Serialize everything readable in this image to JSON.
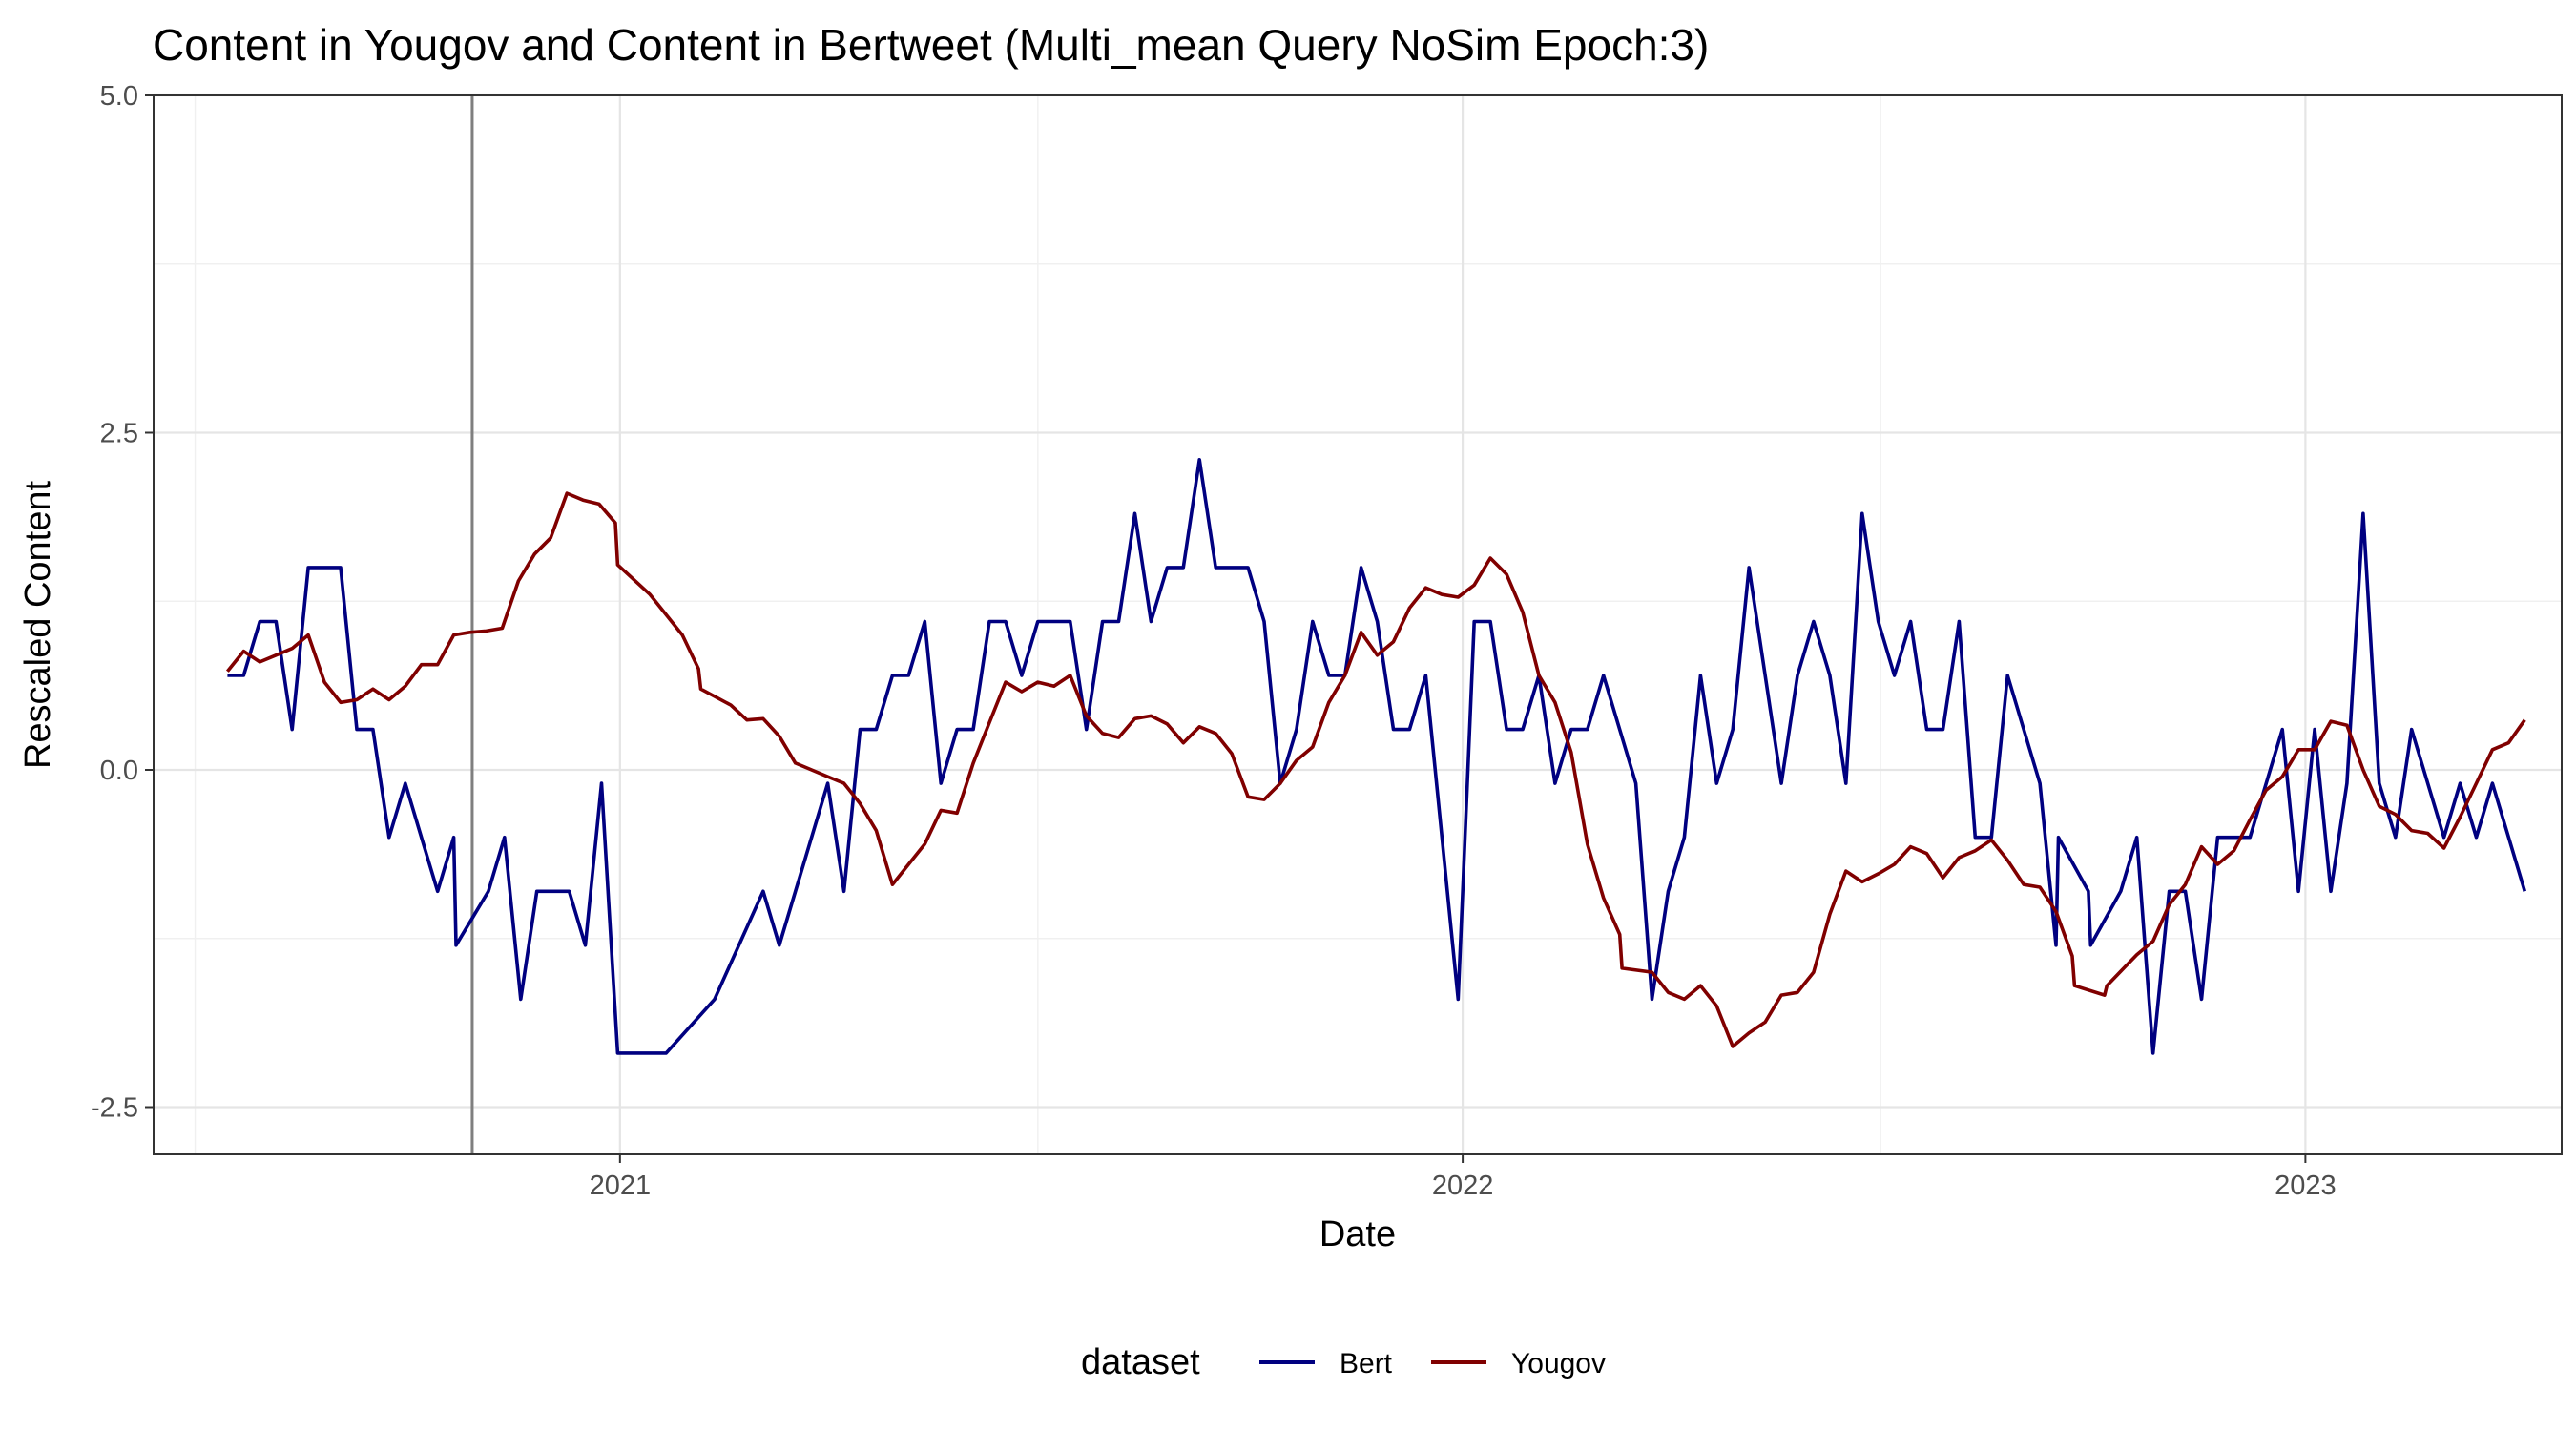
{
  "chart_data": {
    "type": "line",
    "title": "Content in Yougov and Content in Bertweet (Multi_mean Query NoSim Epoch:3)",
    "xlabel": "Date",
    "ylabel": "Rescaled  Content",
    "xlim": [
      "2020-06-13",
      "2023-04-22"
    ],
    "ylim": [
      -2.85,
      5.0
    ],
    "x_ticks": [
      {
        "value": "2021-01-01",
        "label": "2021"
      },
      {
        "value": "2022-01-01",
        "label": "2022"
      },
      {
        "value": "2023-01-01",
        "label": "2023"
      }
    ],
    "y_ticks": [
      {
        "value": -2.5,
        "label": "-2.5"
      },
      {
        "value": 0,
        "label": "0.0"
      },
      {
        "value": 2.5,
        "label": "2.5"
      },
      {
        "value": 5,
        "label": "5.0"
      }
    ],
    "grid": true,
    "vline": "2020-10-29",
    "legend": {
      "title": "dataset",
      "position": "bottom"
    },
    "series": [
      {
        "name": "Bert",
        "color": "#000080",
        "points": [
          [
            "2020-07-15",
            0.7
          ],
          [
            "2020-07-22",
            0.7
          ],
          [
            "2020-07-29",
            1.1
          ],
          [
            "2020-08-05",
            1.1
          ],
          [
            "2020-08-12",
            0.3
          ],
          [
            "2020-08-19",
            1.5
          ],
          [
            "2020-08-26",
            1.5
          ],
          [
            "2020-09-02",
            1.5
          ],
          [
            "2020-09-09",
            0.3
          ],
          [
            "2020-09-16",
            0.3
          ],
          [
            "2020-09-23",
            -0.5
          ],
          [
            "2020-09-30",
            -0.1
          ],
          [
            "2020-10-07",
            -0.5
          ],
          [
            "2020-10-14",
            -0.9
          ],
          [
            "2020-10-21",
            -0.5
          ],
          [
            "2020-10-22",
            -1.3
          ],
          [
            "2020-11-05",
            -0.9
          ],
          [
            "2020-11-12",
            -0.5
          ],
          [
            "2020-11-19",
            -1.7
          ],
          [
            "2020-11-26",
            -0.9
          ],
          [
            "2020-12-03",
            -0.9
          ],
          [
            "2020-12-10",
            -0.9
          ],
          [
            "2020-12-17",
            -1.3
          ],
          [
            "2020-12-24",
            -0.1
          ],
          [
            "2020-12-31",
            -2.1
          ],
          [
            "2021-01-21",
            -2.1
          ],
          [
            "2021-02-11",
            -1.7
          ],
          [
            "2021-03-04",
            -0.9
          ],
          [
            "2021-03-11",
            -1.3
          ],
          [
            "2021-04-01",
            -0.1
          ],
          [
            "2021-04-08",
            -0.9
          ],
          [
            "2021-04-15",
            0.3
          ],
          [
            "2021-04-22",
            0.3
          ],
          [
            "2021-04-29",
            0.7
          ],
          [
            "2021-05-06",
            0.7
          ],
          [
            "2021-05-13",
            1.1
          ],
          [
            "2021-05-20",
            -0.1
          ],
          [
            "2021-05-27",
            0.3
          ],
          [
            "2021-06-03",
            0.3
          ],
          [
            "2021-06-10",
            1.1
          ],
          [
            "2021-06-17",
            1.1
          ],
          [
            "2021-06-24",
            0.7
          ],
          [
            "2021-07-01",
            1.1
          ],
          [
            "2021-07-15",
            1.1
          ],
          [
            "2021-07-22",
            0.3
          ],
          [
            "2021-07-29",
            1.1
          ],
          [
            "2021-08-05",
            1.1
          ],
          [
            "2021-08-12",
            1.9
          ],
          [
            "2021-08-19",
            1.1
          ],
          [
            "2021-08-26",
            1.5
          ],
          [
            "2021-09-02",
            1.5
          ],
          [
            "2021-09-09",
            2.3
          ],
          [
            "2021-09-16",
            1.5
          ],
          [
            "2021-09-30",
            1.5
          ],
          [
            "2021-10-07",
            1.1
          ],
          [
            "2021-10-14",
            -0.1
          ],
          [
            "2021-10-21",
            0.3
          ],
          [
            "2021-10-28",
            1.1
          ],
          [
            "2021-11-04",
            0.7
          ],
          [
            "2021-11-11",
            0.7
          ],
          [
            "2021-11-18",
            1.5
          ],
          [
            "2021-11-25",
            1.1
          ],
          [
            "2021-12-02",
            0.3
          ],
          [
            "2021-12-09",
            0.3
          ],
          [
            "2021-12-16",
            0.7
          ],
          [
            "2021-12-30",
            -1.7
          ],
          [
            "2022-01-06",
            1.1
          ],
          [
            "2022-01-13",
            1.1
          ],
          [
            "2022-01-20",
            0.3
          ],
          [
            "2022-01-27",
            0.3
          ],
          [
            "2022-02-03",
            0.7
          ],
          [
            "2022-02-10",
            -0.1
          ],
          [
            "2022-02-17",
            0.3
          ],
          [
            "2022-02-24",
            0.3
          ],
          [
            "2022-03-03",
            0.7
          ],
          [
            "2022-03-17",
            -0.1
          ],
          [
            "2022-03-24",
            -1.7
          ],
          [
            "2022-03-31",
            -0.9
          ],
          [
            "2022-04-07",
            -0.5
          ],
          [
            "2022-04-14",
            0.7
          ],
          [
            "2022-04-21",
            -0.1
          ],
          [
            "2022-04-28",
            0.3
          ],
          [
            "2022-05-05",
            1.5
          ],
          [
            "2022-05-19",
            -0.1
          ],
          [
            "2022-05-26",
            0.7
          ],
          [
            "2022-06-02",
            1.1
          ],
          [
            "2022-06-09",
            0.7
          ],
          [
            "2022-06-16",
            -0.1
          ],
          [
            "2022-06-23",
            1.9
          ],
          [
            "2022-06-30",
            1.1
          ],
          [
            "2022-07-07",
            0.7
          ],
          [
            "2022-07-14",
            1.1
          ],
          [
            "2022-07-21",
            0.3
          ],
          [
            "2022-07-28",
            0.3
          ],
          [
            "2022-08-04",
            1.1
          ],
          [
            "2022-08-11",
            -0.5
          ],
          [
            "2022-08-18",
            -0.5
          ],
          [
            "2022-08-25",
            0.7
          ],
          [
            "2022-09-08",
            -0.1
          ],
          [
            "2022-09-15",
            -1.3
          ],
          [
            "2022-09-16",
            -0.5
          ],
          [
            "2022-09-29",
            -0.9
          ],
          [
            "2022-09-30",
            -1.3
          ],
          [
            "2022-10-13",
            -0.9
          ],
          [
            "2022-10-20",
            -0.5
          ],
          [
            "2022-10-27",
            -2.1
          ],
          [
            "2022-11-03",
            -0.9
          ],
          [
            "2022-11-10",
            -0.9
          ],
          [
            "2022-11-17",
            -1.7
          ],
          [
            "2022-11-24",
            -0.5
          ],
          [
            "2022-12-08",
            -0.5
          ],
          [
            "2022-12-22",
            0.3
          ],
          [
            "2022-12-29",
            -0.9
          ],
          [
            "2023-01-05",
            0.3
          ],
          [
            "2023-01-12",
            -0.9
          ],
          [
            "2023-01-19",
            -0.1
          ],
          [
            "2023-01-26",
            1.9
          ],
          [
            "2023-02-02",
            -0.1
          ],
          [
            "2023-02-09",
            -0.5
          ],
          [
            "2023-02-16",
            0.3
          ],
          [
            "2023-03-02",
            -0.5
          ],
          [
            "2023-03-09",
            -0.1
          ],
          [
            "2023-03-16",
            -0.5
          ],
          [
            "2023-03-23",
            -0.1
          ],
          [
            "2023-04-06",
            -0.9
          ]
        ]
      },
      {
        "name": "Yougov",
        "color": "#800000",
        "points": [
          [
            "2020-07-15",
            0.73
          ],
          [
            "2020-07-22",
            0.88
          ],
          [
            "2020-07-29",
            0.8
          ],
          [
            "2020-08-05",
            0.85
          ],
          [
            "2020-08-12",
            0.9
          ],
          [
            "2020-08-19",
            1.0
          ],
          [
            "2020-08-26",
            0.65
          ],
          [
            "2020-09-02",
            0.5
          ],
          [
            "2020-09-09",
            0.52
          ],
          [
            "2020-09-16",
            0.6
          ],
          [
            "2020-09-23",
            0.52
          ],
          [
            "2020-09-30",
            0.62
          ],
          [
            "2020-10-07",
            0.78
          ],
          [
            "2020-10-14",
            0.78
          ],
          [
            "2020-10-21",
            1.0
          ],
          [
            "2020-10-28",
            1.02
          ],
          [
            "2020-11-04",
            1.03
          ],
          [
            "2020-11-11",
            1.05
          ],
          [
            "2020-11-18",
            1.4
          ],
          [
            "2020-11-25",
            1.6
          ],
          [
            "2020-12-02",
            1.72
          ],
          [
            "2020-12-09",
            2.05
          ],
          [
            "2020-12-16",
            2.0
          ],
          [
            "2020-12-23",
            1.97
          ],
          [
            "2020-12-30",
            1.83
          ],
          [
            "2020-12-31",
            1.52
          ],
          [
            "2021-01-14",
            1.3
          ],
          [
            "2021-01-28",
            1.0
          ],
          [
            "2021-02-04",
            0.75
          ],
          [
            "2021-02-05",
            0.6
          ],
          [
            "2021-02-18",
            0.48
          ],
          [
            "2021-02-25",
            0.37
          ],
          [
            "2021-03-04",
            0.38
          ],
          [
            "2021-03-11",
            0.25
          ],
          [
            "2021-03-18",
            0.05
          ],
          [
            "2021-03-25",
            0.0
          ],
          [
            "2021-04-01",
            -0.05
          ],
          [
            "2021-04-08",
            -0.1
          ],
          [
            "2021-04-15",
            -0.25
          ],
          [
            "2021-04-22",
            -0.45
          ],
          [
            "2021-04-29",
            -0.85
          ],
          [
            "2021-05-06",
            -0.7
          ],
          [
            "2021-05-13",
            -0.55
          ],
          [
            "2021-05-20",
            -0.3
          ],
          [
            "2021-05-27",
            -0.32
          ],
          [
            "2021-06-03",
            0.05
          ],
          [
            "2021-06-10",
            0.35
          ],
          [
            "2021-06-17",
            0.65
          ],
          [
            "2021-06-24",
            0.58
          ],
          [
            "2021-07-01",
            0.65
          ],
          [
            "2021-07-08",
            0.62
          ],
          [
            "2021-07-15",
            0.7
          ],
          [
            "2021-07-22",
            0.4
          ],
          [
            "2021-07-29",
            0.27
          ],
          [
            "2021-08-05",
            0.24
          ],
          [
            "2021-08-12",
            0.38
          ],
          [
            "2021-08-19",
            0.4
          ],
          [
            "2021-08-26",
            0.34
          ],
          [
            "2021-09-02",
            0.2
          ],
          [
            "2021-09-09",
            0.32
          ],
          [
            "2021-09-16",
            0.27
          ],
          [
            "2021-09-23",
            0.12
          ],
          [
            "2021-09-30",
            -0.2
          ],
          [
            "2021-10-07",
            -0.22
          ],
          [
            "2021-10-14",
            -0.1
          ],
          [
            "2021-10-21",
            0.07
          ],
          [
            "2021-10-28",
            0.17
          ],
          [
            "2021-11-04",
            0.5
          ],
          [
            "2021-11-11",
            0.7
          ],
          [
            "2021-11-18",
            1.02
          ],
          [
            "2021-11-25",
            0.85
          ],
          [
            "2021-12-02",
            0.95
          ],
          [
            "2021-12-09",
            1.2
          ],
          [
            "2021-12-16",
            1.35
          ],
          [
            "2021-12-23",
            1.3
          ],
          [
            "2021-12-30",
            1.28
          ],
          [
            "2022-01-06",
            1.37
          ],
          [
            "2022-01-13",
            1.57
          ],
          [
            "2022-01-20",
            1.45
          ],
          [
            "2022-01-27",
            1.17
          ],
          [
            "2022-02-03",
            0.7
          ],
          [
            "2022-02-10",
            0.5
          ],
          [
            "2022-02-17",
            0.13
          ],
          [
            "2022-02-24",
            -0.55
          ],
          [
            "2022-03-03",
            -0.95
          ],
          [
            "2022-03-10",
            -1.22
          ],
          [
            "2022-03-11",
            -1.47
          ],
          [
            "2022-03-24",
            -1.5
          ],
          [
            "2022-03-31",
            -1.65
          ],
          [
            "2022-04-07",
            -1.7
          ],
          [
            "2022-04-14",
            -1.6
          ],
          [
            "2022-04-21",
            -1.75
          ],
          [
            "2022-04-28",
            -2.05
          ],
          [
            "2022-05-05",
            -1.95
          ],
          [
            "2022-05-12",
            -1.87
          ],
          [
            "2022-05-19",
            -1.67
          ],
          [
            "2022-05-26",
            -1.65
          ],
          [
            "2022-06-02",
            -1.5
          ],
          [
            "2022-06-09",
            -1.07
          ],
          [
            "2022-06-16",
            -0.75
          ],
          [
            "2022-06-23",
            -0.83
          ],
          [
            "2022-06-30",
            -0.77
          ],
          [
            "2022-07-07",
            -0.7
          ],
          [
            "2022-07-14",
            -0.57
          ],
          [
            "2022-07-21",
            -0.62
          ],
          [
            "2022-07-28",
            -0.8
          ],
          [
            "2022-08-04",
            -0.65
          ],
          [
            "2022-08-11",
            -0.6
          ],
          [
            "2022-08-18",
            -0.52
          ],
          [
            "2022-08-25",
            -0.67
          ],
          [
            "2022-09-01",
            -0.85
          ],
          [
            "2022-09-08",
            -0.87
          ],
          [
            "2022-09-15",
            -1.05
          ],
          [
            "2022-09-22",
            -1.38
          ],
          [
            "2022-09-23",
            -1.6
          ],
          [
            "2022-10-06",
            -1.67
          ],
          [
            "2022-10-07",
            -1.6
          ],
          [
            "2022-10-20",
            -1.37
          ],
          [
            "2022-10-27",
            -1.27
          ],
          [
            "2022-11-03",
            -1.0
          ],
          [
            "2022-11-10",
            -0.85
          ],
          [
            "2022-11-17",
            -0.57
          ],
          [
            "2022-11-24",
            -0.7
          ],
          [
            "2022-12-01",
            -0.6
          ],
          [
            "2022-12-08",
            -0.37
          ],
          [
            "2022-12-15",
            -0.15
          ],
          [
            "2022-12-22",
            -0.05
          ],
          [
            "2022-12-29",
            0.15
          ],
          [
            "2023-01-05",
            0.15
          ],
          [
            "2023-01-12",
            0.36
          ],
          [
            "2023-01-19",
            0.33
          ],
          [
            "2023-01-26",
            0.0
          ],
          [
            "2023-02-02",
            -0.27
          ],
          [
            "2023-02-09",
            -0.33
          ],
          [
            "2023-02-16",
            -0.45
          ],
          [
            "2023-02-23",
            -0.47
          ],
          [
            "2023-03-02",
            -0.58
          ],
          [
            "2023-03-09",
            -0.35
          ],
          [
            "2023-03-16",
            -0.1
          ],
          [
            "2023-03-23",
            0.15
          ],
          [
            "2023-03-30",
            0.2
          ],
          [
            "2023-04-06",
            0.37
          ]
        ]
      }
    ]
  }
}
